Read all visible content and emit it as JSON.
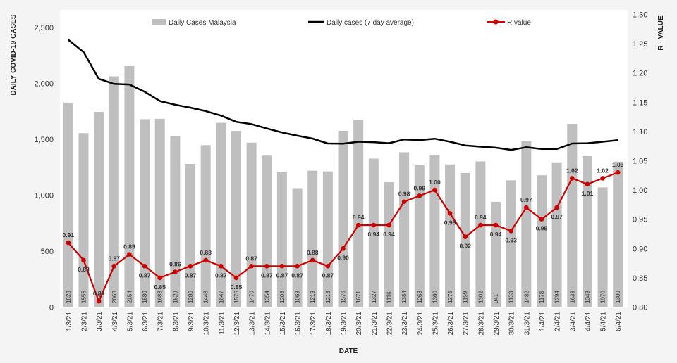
{
  "chart_data": {
    "type": "bar",
    "categories": [
      "1/3/21",
      "2/3/21",
      "3/3/21",
      "4/3/21",
      "5/3/21",
      "6/3/21",
      "7/3/21",
      "8/3/21",
      "9/3/21",
      "10/3/21",
      "11/3/21",
      "12/3/21",
      "13/3/21",
      "14/3/21",
      "15/3/21",
      "16/3/21",
      "17/3/21",
      "18/3/21",
      "19/3/21",
      "20/3/21",
      "21/3/21",
      "22/3/21",
      "23/3/21",
      "24/3/21",
      "25/3/21",
      "26/3/21",
      "27/3/21",
      "28/3/21",
      "29/3/21",
      "30/3/21",
      "31/3/21",
      "1/4/21",
      "2/4/21",
      "3/4/21",
      "4/4/21",
      "5/4/21",
      "6/4/21"
    ],
    "series": [
      {
        "name": "Daily Cases Malaysia",
        "type": "bar",
        "axis": "left",
        "color": "#bfbfbf",
        "values": [
          1828,
          1555,
          1745,
          2063,
          2154,
          1680,
          1683,
          1529,
          1280,
          1448,
          1647,
          1575,
          1470,
          1354,
          1208,
          1063,
          1219,
          1213,
          1576,
          1671,
          1327,
          1116,
          1384,
          1268,
          1360,
          1275,
          1199,
          1302,
          941,
          1133,
          1482,
          1178,
          1294,
          1638,
          1349,
          1070,
          1300
        ]
      },
      {
        "name": "Daily cases (7 day average)",
        "type": "line",
        "axis": "left",
        "color": "#000000",
        "values": [
          2390,
          2280,
          2040,
          1995,
          1990,
          1925,
          1842,
          1809,
          1783,
          1752,
          1712,
          1656,
          1636,
          1597,
          1561,
          1532,
          1506,
          1462,
          1461,
          1478,
          1474,
          1465,
          1499,
          1493,
          1505,
          1478,
          1445,
          1434,
          1425,
          1405,
          1429,
          1413,
          1413,
          1462,
          1465,
          1478,
          1492
        ]
      },
      {
        "name": "R value",
        "type": "line",
        "axis": "right",
        "color": "#cc0000",
        "values": [
          0.91,
          0.88,
          0.81,
          0.87,
          0.89,
          0.87,
          0.85,
          0.86,
          0.87,
          0.88,
          0.87,
          0.85,
          0.87,
          0.87,
          0.87,
          0.87,
          0.88,
          0.87,
          0.9,
          0.94,
          0.94,
          0.94,
          0.98,
          0.99,
          1.0,
          0.96,
          0.92,
          0.94,
          0.94,
          0.93,
          0.97,
          0.95,
          0.97,
          1.02,
          1.01,
          1.02,
          1.03
        ],
        "labels": [
          "0.91",
          "0.88",
          "0.81",
          "0.87",
          "0.89",
          "0.87",
          "0.85",
          "0.86",
          "0.87",
          "0.88",
          "0.87",
          "0.85",
          "0.87",
          "0.87",
          "0.87",
          "0.87",
          "0.88",
          "0.87",
          "0.90",
          "0.94",
          "0.94",
          "0.94",
          "0.98",
          "0.99",
          "1.00",
          "0.96",
          "0.92",
          "0.94",
          "0.94",
          "0.93",
          "0.97",
          "0.95",
          "0.97",
          "1.02",
          "1.01",
          "1.02",
          "1.03"
        ]
      }
    ],
    "xlabel": "DATE",
    "ylabel": "DAILY COVID-19 CASES",
    "y2label": "R - VALUE",
    "ylim": [
      0,
      2500
    ],
    "y2lim": [
      0.8,
      1.3
    ],
    "yticks": [
      "0",
      "500",
      "1,000",
      "1,500",
      "2,000",
      "2,500"
    ],
    "y2ticks": [
      "0.80",
      "0.85",
      "0.90",
      "0.95",
      "1.00",
      "1.05",
      "1.10",
      "1.15",
      "1.20",
      "1.25",
      "1.30"
    ],
    "legend_position": "top",
    "grid": false
  }
}
